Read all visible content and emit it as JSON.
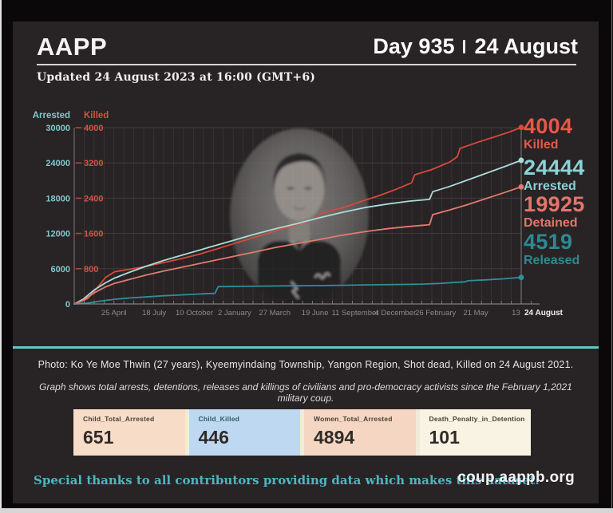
{
  "header": {
    "logo": "AAPP",
    "day": "Day 935",
    "date": "24 August",
    "updated": "Updated 24 August 2023 at 16:00 (GMT+6)"
  },
  "chart_data": {
    "type": "line",
    "left_axis": {
      "label": "Arrested",
      "color": "#7fc9cc",
      "max": 30000,
      "ticks": [
        30000,
        24000,
        18000,
        12000,
        6000,
        0
      ]
    },
    "killed_axis": {
      "label": "Killed",
      "color": "#cf5449",
      "max": 4000,
      "ticks": [
        4000,
        3200,
        2400,
        1600,
        800
      ]
    },
    "x_ticks": [
      "25 April",
      "18 July",
      "10 October",
      "2 January",
      "27 March",
      "19 June",
      "11 September",
      "4 December",
      "26 February",
      "21 May",
      "13"
    ],
    "x_tick_days": [
      83,
      167,
      251,
      335,
      419,
      503,
      587,
      671,
      755,
      839,
      923
    ],
    "total_days": 934,
    "x_end_label": "24 August",
    "grid": true,
    "legend_position": "right-annotations",
    "series": [
      {
        "name": "Killed",
        "axis": "killed",
        "color": "#d8493d",
        "final": 4004,
        "points": [
          [
            0,
            0
          ],
          [
            0.03,
            120
          ],
          [
            0.05,
            350
          ],
          [
            0.07,
            600
          ],
          [
            0.09,
            730
          ],
          [
            0.12,
            780
          ],
          [
            0.16,
            850
          ],
          [
            0.2,
            940
          ],
          [
            0.24,
            1030
          ],
          [
            0.28,
            1130
          ],
          [
            0.32,
            1250
          ],
          [
            0.36,
            1380
          ],
          [
            0.4,
            1500
          ],
          [
            0.44,
            1620
          ],
          [
            0.48,
            1750
          ],
          [
            0.52,
            1870
          ],
          [
            0.545,
            1960
          ],
          [
            0.553,
            2060
          ],
          [
            0.6,
            2180
          ],
          [
            0.64,
            2320
          ],
          [
            0.68,
            2450
          ],
          [
            0.72,
            2600
          ],
          [
            0.755,
            2750
          ],
          [
            0.762,
            2930
          ],
          [
            0.8,
            3050
          ],
          [
            0.84,
            3220
          ],
          [
            0.857,
            3340
          ],
          [
            0.863,
            3530
          ],
          [
            0.9,
            3660
          ],
          [
            0.94,
            3790
          ],
          [
            0.97,
            3890
          ],
          [
            1,
            4004
          ]
        ]
      },
      {
        "name": "Arrested",
        "axis": "arrested",
        "color": "#abdbd9",
        "final": 24444,
        "points": [
          [
            0,
            0
          ],
          [
            0.02,
            800
          ],
          [
            0.045,
            2400
          ],
          [
            0.07,
            3600
          ],
          [
            0.09,
            4400
          ],
          [
            0.12,
            5300
          ],
          [
            0.16,
            6400
          ],
          [
            0.2,
            7400
          ],
          [
            0.25,
            8500
          ],
          [
            0.3,
            9600
          ],
          [
            0.35,
            10700
          ],
          [
            0.4,
            11800
          ],
          [
            0.45,
            12800
          ],
          [
            0.5,
            13700
          ],
          [
            0.55,
            14700
          ],
          [
            0.6,
            15600
          ],
          [
            0.65,
            16400
          ],
          [
            0.7,
            17000
          ],
          [
            0.75,
            17500
          ],
          [
            0.795,
            17800
          ],
          [
            0.802,
            19100
          ],
          [
            0.84,
            20000
          ],
          [
            0.88,
            21100
          ],
          [
            0.92,
            22200
          ],
          [
            0.96,
            23300
          ],
          [
            1,
            24444
          ]
        ]
      },
      {
        "name": "Detained",
        "axis": "arrested",
        "color": "#e17b70",
        "final": 19925,
        "points": [
          [
            0,
            0
          ],
          [
            0.02,
            600
          ],
          [
            0.045,
            1900
          ],
          [
            0.07,
            2900
          ],
          [
            0.09,
            3500
          ],
          [
            0.12,
            4100
          ],
          [
            0.16,
            4900
          ],
          [
            0.2,
            5600
          ],
          [
            0.25,
            6400
          ],
          [
            0.3,
            7200
          ],
          [
            0.35,
            8000
          ],
          [
            0.4,
            8800
          ],
          [
            0.45,
            9600
          ],
          [
            0.5,
            10300
          ],
          [
            0.55,
            11000
          ],
          [
            0.6,
            11700
          ],
          [
            0.65,
            12300
          ],
          [
            0.7,
            12800
          ],
          [
            0.75,
            13200
          ],
          [
            0.795,
            13500
          ],
          [
            0.802,
            15200
          ],
          [
            0.84,
            16000
          ],
          [
            0.88,
            16900
          ],
          [
            0.92,
            17900
          ],
          [
            0.96,
            18900
          ],
          [
            1,
            19925
          ]
        ]
      },
      {
        "name": "Released",
        "axis": "arrested",
        "color": "#2f8f99",
        "final": 4519,
        "points": [
          [
            0,
            0
          ],
          [
            0.03,
            150
          ],
          [
            0.06,
            500
          ],
          [
            0.09,
            800
          ],
          [
            0.12,
            1000
          ],
          [
            0.16,
            1200
          ],
          [
            0.2,
            1400
          ],
          [
            0.24,
            1550
          ],
          [
            0.28,
            1700
          ],
          [
            0.315,
            1800
          ],
          [
            0.322,
            2950
          ],
          [
            0.38,
            3000
          ],
          [
            0.44,
            3050
          ],
          [
            0.5,
            3090
          ],
          [
            0.56,
            3140
          ],
          [
            0.62,
            3200
          ],
          [
            0.68,
            3270
          ],
          [
            0.74,
            3330
          ],
          [
            0.78,
            3380
          ],
          [
            0.82,
            3500
          ],
          [
            0.86,
            3700
          ],
          [
            0.874,
            3760
          ],
          [
            0.88,
            3950
          ],
          [
            0.92,
            4100
          ],
          [
            0.96,
            4280
          ],
          [
            1,
            4519
          ]
        ]
      }
    ]
  },
  "stats": [
    {
      "value": "4004",
      "label": "Killed",
      "color": "#e8574a"
    },
    {
      "value": "24444",
      "label": "Arrested",
      "color": "#8bd2d6"
    },
    {
      "value": "19925",
      "label": "Detained",
      "color": "#e2766b"
    },
    {
      "value": "4519",
      "label": "Released",
      "color": "#2d8a93"
    }
  ],
  "photo_caption": "Photo: Ko Ye Moe Thwin (27 years), Kyeemyindaing Township, Yangon Region, Shot dead, Killed on 24 August 2021.",
  "graph_note": "Graph shows total arrests, detentions, releases and killings of civilians and pro-democracy activists since the February 1,2021 military coup.",
  "cards": [
    {
      "label": "Child_Total_Arrested",
      "value": "651",
      "bg": "#f7dcc7"
    },
    {
      "label": "Child_Killed",
      "value": "446",
      "bg": "#bfd8f2"
    },
    {
      "label": "Women_Total_Arrested",
      "value": "4894",
      "bg": "#f5d6c2"
    },
    {
      "label": "Death_Penalty_in_Detention",
      "value": "101",
      "bg": "#f8f3e2"
    }
  ],
  "footer": {
    "thanks": "Special thanks to all contributors providing data which makes this dataset.",
    "site": "coup.aappb.org"
  },
  "accent_colors": {
    "divider_teal": "#65c4cc",
    "header_rule": "#d6d4d4",
    "card_bg": "#282324"
  }
}
